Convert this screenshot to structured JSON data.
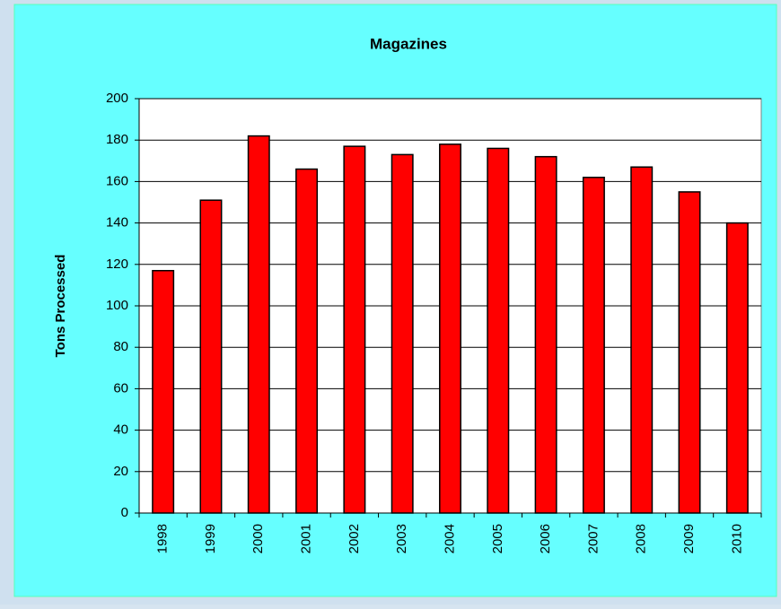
{
  "chart_data": {
    "type": "bar",
    "title": "Magazines",
    "y_label": "Tons Processed",
    "categories": [
      "1998",
      "1999",
      "2000",
      "2001",
      "2002",
      "2003",
      "2004",
      "2005",
      "2006",
      "2007",
      "2008",
      "2009",
      "2010"
    ],
    "values": [
      117,
      151,
      182,
      166,
      177,
      173,
      178,
      176,
      172,
      162,
      167,
      155,
      140
    ],
    "color": "#ff0000",
    "ylim": [
      0,
      200
    ],
    "yticks": [
      0,
      20,
      40,
      60,
      80,
      100,
      120,
      140,
      160,
      180,
      200
    ],
    "grid": true
  }
}
